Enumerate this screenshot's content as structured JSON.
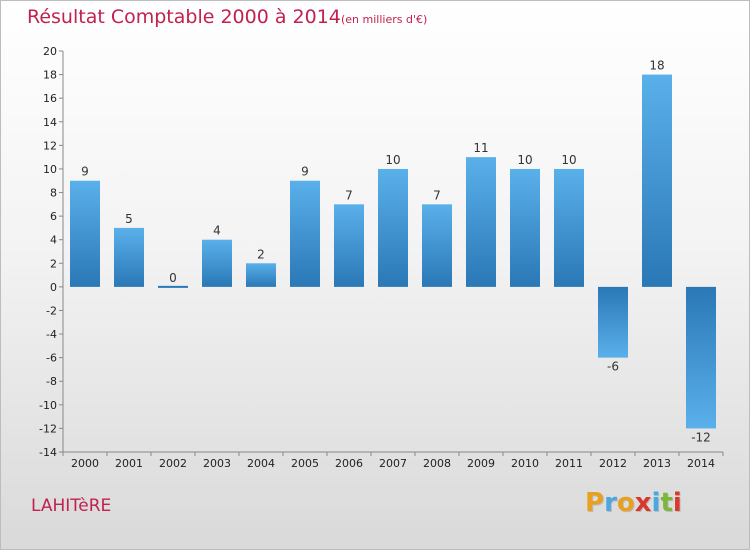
{
  "title": "Résultat Comptable 2000 à 2014",
  "subtitle": "(en milliers d'€)",
  "commune": "LAHITèRE",
  "brand": {
    "letters": [
      "P",
      "r",
      "o",
      "x",
      "i",
      "t",
      "i"
    ],
    "colors": [
      "#e8a020",
      "#4aa7e0",
      "#e8a020",
      "#d8392b",
      "#4aa7e0",
      "#7ab83a",
      "#d8392b"
    ]
  },
  "colors": {
    "title": "#c1214f",
    "bar_light": "#5ab0ea",
    "bar_dark": "#2a78b6"
  },
  "chart_data": {
    "type": "bar",
    "title": "Résultat Comptable 2000 à 2014",
    "subtitle": "(en milliers d'€)",
    "categories": [
      "2000",
      "2001",
      "2002",
      "2003",
      "2004",
      "2005",
      "2006",
      "2007",
      "2008",
      "2009",
      "2010",
      "2011",
      "2012",
      "2013",
      "2014"
    ],
    "values": [
      9,
      5,
      0,
      4,
      2,
      9,
      7,
      10,
      7,
      11,
      10,
      10,
      -6,
      18,
      -12
    ],
    "data_labels": [
      "9",
      "5",
      "0",
      "4",
      "2",
      "9",
      "7",
      "10",
      "7",
      "11",
      "10",
      "10",
      "-6",
      "18",
      "-12"
    ],
    "ylim": [
      -14,
      20
    ],
    "yticks": [
      -14,
      -12,
      -10,
      -8,
      -6,
      -4,
      -2,
      0,
      2,
      4,
      6,
      8,
      10,
      12,
      14,
      16,
      18,
      20
    ],
    "grid": false,
    "legend": "none"
  }
}
